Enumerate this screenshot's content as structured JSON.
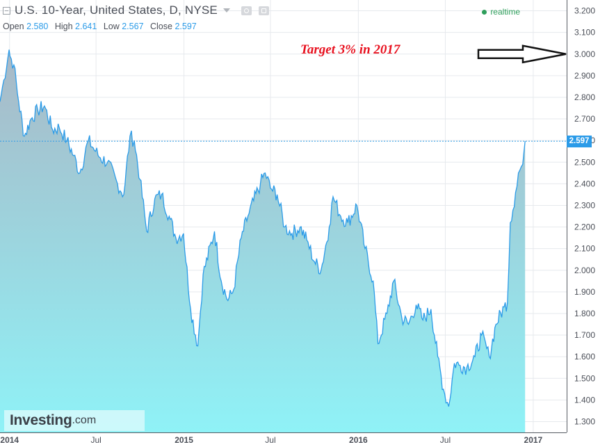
{
  "header": {
    "title": "U.S. 10-Year, United States, D, NYSE",
    "open_label": "Open",
    "open": "2.580",
    "high_label": "High",
    "high": "2.641",
    "low_label": "Low",
    "low": "2.567",
    "close_label": "Close",
    "close": "2.597",
    "realtime": "realtime"
  },
  "annotation": {
    "text": "Target 3% in 2017"
  },
  "logo": {
    "brand": "Investing",
    "domain": ".com"
  },
  "last_price": "2.597",
  "colors": {
    "line": "#2b9be8",
    "fill_top": "#a9b8c6",
    "fill_bottom": "#8ff2f7",
    "annotation": "#e8101e",
    "grid": "#dde1e6"
  },
  "chart_data": {
    "type": "area",
    "title": "U.S. 10-Year, United States, D, NYSE",
    "x_tick_labels": [
      "2014",
      "Jul",
      "2015",
      "Jul",
      "2016",
      "Jul",
      "2017"
    ],
    "y_tick_labels": [
      "1.300",
      "1.400",
      "1.500",
      "1.600",
      "1.700",
      "1.800",
      "1.900",
      "2.000",
      "2.100",
      "2.200",
      "2.300",
      "2.400",
      "2.500",
      "2.600",
      "2.700",
      "2.800",
      "2.900",
      "3.000",
      "3.100",
      "3.200"
    ],
    "ylim": [
      1.25,
      3.25
    ],
    "xlim": [
      "2013-12-12",
      "2017-03-12"
    ],
    "grid": true,
    "series": [
      {
        "x": [
          "2013-12-12",
          "2013-12-20",
          "2013-12-31",
          "2014-01-02",
          "2014-01-10",
          "2014-01-20",
          "2014-02-01",
          "2014-02-15",
          "2014-03-01",
          "2014-03-15",
          "2014-04-01",
          "2014-04-15",
          "2014-05-01",
          "2014-05-15",
          "2014-05-28",
          "2014-06-15",
          "2014-06-30",
          "2014-07-10",
          "2014-07-25",
          "2014-08-15",
          "2014-08-28",
          "2014-09-10",
          "2014-09-19",
          "2014-10-01",
          "2014-10-15",
          "2014-11-01",
          "2014-11-15",
          "2014-12-01",
          "2014-12-15",
          "2014-12-31",
          "2015-01-15",
          "2015-01-30",
          "2015-02-10",
          "2015-03-06",
          "2015-03-20",
          "2015-04-03",
          "2015-04-15",
          "2015-05-01",
          "2015-05-15",
          "2015-06-10",
          "2015-06-20",
          "2015-07-01",
          "2015-07-15",
          "2015-07-31",
          "2015-08-15",
          "2015-09-01",
          "2015-09-15",
          "2015-10-01",
          "2015-10-15",
          "2015-11-01",
          "2015-11-09",
          "2015-11-25",
          "2015-12-10",
          "2015-12-29",
          "2016-01-15",
          "2016-02-01",
          "2016-02-11",
          "2016-03-01",
          "2016-03-15",
          "2016-04-01",
          "2016-04-15",
          "2016-05-01",
          "2016-05-15",
          "2016-06-01",
          "2016-06-15",
          "2016-06-27",
          "2016-07-08",
          "2016-07-20",
          "2016-08-01",
          "2016-08-15",
          "2016-09-01",
          "2016-09-15",
          "2016-10-01",
          "2016-10-15",
          "2016-11-01",
          "2016-11-08",
          "2016-11-14",
          "2016-11-25",
          "2016-12-01",
          "2016-12-10",
          "2016-12-15"
        ],
        "values": [
          2.78,
          2.88,
          3.02,
          2.99,
          2.95,
          2.78,
          2.62,
          2.7,
          2.74,
          2.76,
          2.65,
          2.66,
          2.6,
          2.53,
          2.45,
          2.6,
          2.55,
          2.52,
          2.5,
          2.4,
          2.35,
          2.62,
          2.6,
          2.42,
          2.18,
          2.33,
          2.35,
          2.25,
          2.15,
          2.17,
          1.82,
          1.65,
          1.98,
          2.18,
          1.95,
          1.86,
          1.91,
          2.15,
          2.25,
          2.4,
          2.45,
          2.38,
          2.35,
          2.2,
          2.17,
          2.2,
          2.14,
          2.04,
          2.0,
          2.2,
          2.34,
          2.25,
          2.22,
          2.3,
          2.1,
          1.95,
          1.66,
          1.8,
          1.95,
          1.78,
          1.75,
          1.84,
          1.77,
          1.82,
          1.6,
          1.45,
          1.37,
          1.57,
          1.56,
          1.55,
          1.6,
          1.7,
          1.6,
          1.75,
          1.83,
          1.85,
          2.22,
          2.36,
          2.45,
          2.49,
          2.597
        ]
      }
    ]
  }
}
